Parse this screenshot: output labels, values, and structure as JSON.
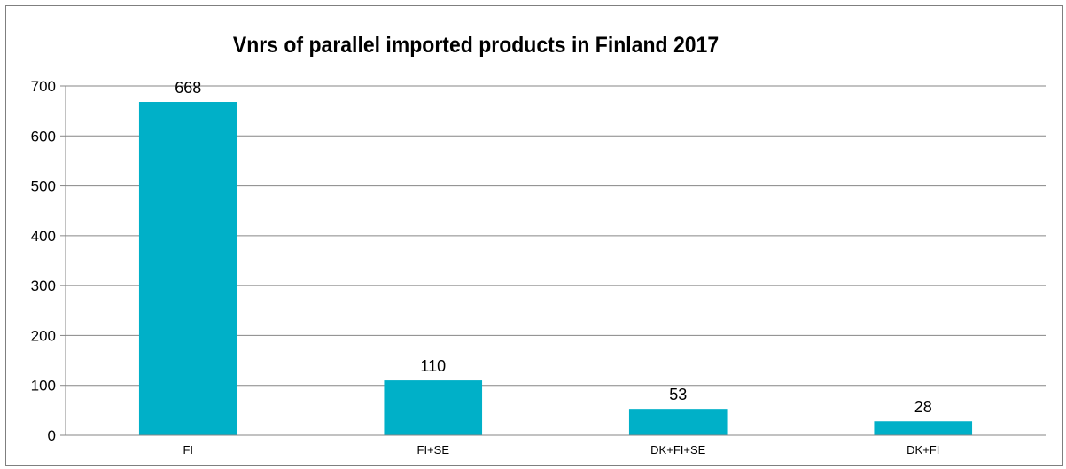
{
  "chart_data": {
    "type": "bar",
    "title": "Vnrs of parallel imported products in Finland 2017",
    "categories": [
      "FI",
      "FI+SE",
      "DK+FI+SE",
      "DK+FI"
    ],
    "values": [
      668,
      110,
      53,
      28
    ],
    "data_labels": [
      "668",
      "110",
      "53",
      "28"
    ],
    "yticks": [
      0,
      100,
      200,
      300,
      400,
      500,
      600,
      700
    ],
    "ylim": [
      0,
      700
    ],
    "xlabel": "",
    "ylabel": "",
    "grid": true,
    "legend": "none",
    "bar_color": "#00b0c8",
    "grid_color": "#868686"
  }
}
